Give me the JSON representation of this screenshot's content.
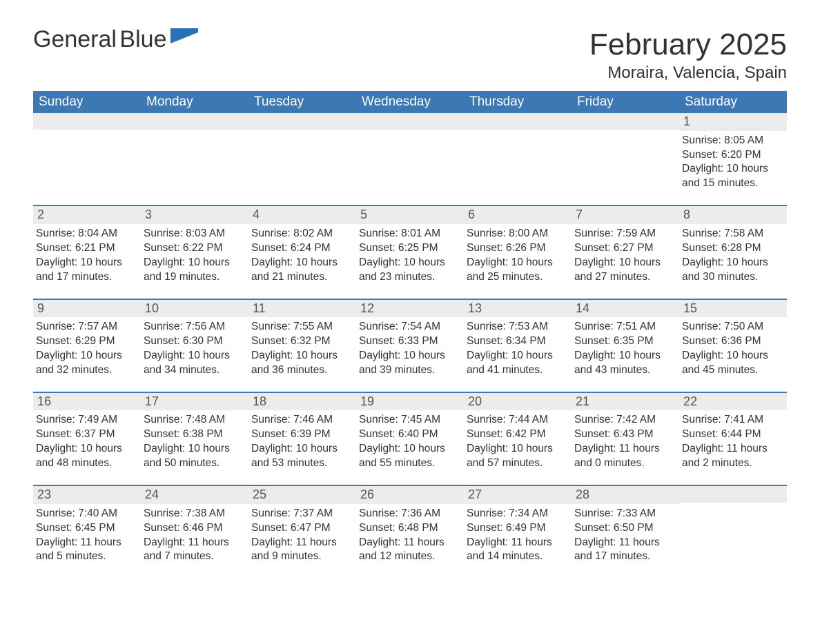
{
  "brand": {
    "name_line1": "General",
    "name_line2": "Blue",
    "flag_color": "#2a72b5",
    "text_color": "#333333"
  },
  "title": "February 2025",
  "location": "Moraira, Valencia, Spain",
  "colors": {
    "header_bg": "#3c79b4",
    "header_text": "#ffffff",
    "daynum_bg": "#ececec",
    "rule": "#3c79b4",
    "body_text": "#333333"
  },
  "typography": {
    "title_fontsize": 44,
    "location_fontsize": 24,
    "weekday_fontsize": 19,
    "daynum_fontsize": 18,
    "body_fontsize": 15.5
  },
  "weekdays": [
    "Sunday",
    "Monday",
    "Tuesday",
    "Wednesday",
    "Thursday",
    "Friday",
    "Saturday"
  ],
  "labels": {
    "sunrise": "Sunrise:",
    "sunset": "Sunset:",
    "daylight": "Daylight:"
  },
  "weeks": [
    [
      null,
      null,
      null,
      null,
      null,
      null,
      {
        "n": "1",
        "sunrise": "8:05 AM",
        "sunset": "6:20 PM",
        "daylight": "10 hours and 15 minutes."
      }
    ],
    [
      {
        "n": "2",
        "sunrise": "8:04 AM",
        "sunset": "6:21 PM",
        "daylight": "10 hours and 17 minutes."
      },
      {
        "n": "3",
        "sunrise": "8:03 AM",
        "sunset": "6:22 PM",
        "daylight": "10 hours and 19 minutes."
      },
      {
        "n": "4",
        "sunrise": "8:02 AM",
        "sunset": "6:24 PM",
        "daylight": "10 hours and 21 minutes."
      },
      {
        "n": "5",
        "sunrise": "8:01 AM",
        "sunset": "6:25 PM",
        "daylight": "10 hours and 23 minutes."
      },
      {
        "n": "6",
        "sunrise": "8:00 AM",
        "sunset": "6:26 PM",
        "daylight": "10 hours and 25 minutes."
      },
      {
        "n": "7",
        "sunrise": "7:59 AM",
        "sunset": "6:27 PM",
        "daylight": "10 hours and 27 minutes."
      },
      {
        "n": "8",
        "sunrise": "7:58 AM",
        "sunset": "6:28 PM",
        "daylight": "10 hours and 30 minutes."
      }
    ],
    [
      {
        "n": "9",
        "sunrise": "7:57 AM",
        "sunset": "6:29 PM",
        "daylight": "10 hours and 32 minutes."
      },
      {
        "n": "10",
        "sunrise": "7:56 AM",
        "sunset": "6:30 PM",
        "daylight": "10 hours and 34 minutes."
      },
      {
        "n": "11",
        "sunrise": "7:55 AM",
        "sunset": "6:32 PM",
        "daylight": "10 hours and 36 minutes."
      },
      {
        "n": "12",
        "sunrise": "7:54 AM",
        "sunset": "6:33 PM",
        "daylight": "10 hours and 39 minutes."
      },
      {
        "n": "13",
        "sunrise": "7:53 AM",
        "sunset": "6:34 PM",
        "daylight": "10 hours and 41 minutes."
      },
      {
        "n": "14",
        "sunrise": "7:51 AM",
        "sunset": "6:35 PM",
        "daylight": "10 hours and 43 minutes."
      },
      {
        "n": "15",
        "sunrise": "7:50 AM",
        "sunset": "6:36 PM",
        "daylight": "10 hours and 45 minutes."
      }
    ],
    [
      {
        "n": "16",
        "sunrise": "7:49 AM",
        "sunset": "6:37 PM",
        "daylight": "10 hours and 48 minutes."
      },
      {
        "n": "17",
        "sunrise": "7:48 AM",
        "sunset": "6:38 PM",
        "daylight": "10 hours and 50 minutes."
      },
      {
        "n": "18",
        "sunrise": "7:46 AM",
        "sunset": "6:39 PM",
        "daylight": "10 hours and 53 minutes."
      },
      {
        "n": "19",
        "sunrise": "7:45 AM",
        "sunset": "6:40 PM",
        "daylight": "10 hours and 55 minutes."
      },
      {
        "n": "20",
        "sunrise": "7:44 AM",
        "sunset": "6:42 PM",
        "daylight": "10 hours and 57 minutes."
      },
      {
        "n": "21",
        "sunrise": "7:42 AM",
        "sunset": "6:43 PM",
        "daylight": "11 hours and 0 minutes."
      },
      {
        "n": "22",
        "sunrise": "7:41 AM",
        "sunset": "6:44 PM",
        "daylight": "11 hours and 2 minutes."
      }
    ],
    [
      {
        "n": "23",
        "sunrise": "7:40 AM",
        "sunset": "6:45 PM",
        "daylight": "11 hours and 5 minutes."
      },
      {
        "n": "24",
        "sunrise": "7:38 AM",
        "sunset": "6:46 PM",
        "daylight": "11 hours and 7 minutes."
      },
      {
        "n": "25",
        "sunrise": "7:37 AM",
        "sunset": "6:47 PM",
        "daylight": "11 hours and 9 minutes."
      },
      {
        "n": "26",
        "sunrise": "7:36 AM",
        "sunset": "6:48 PM",
        "daylight": "11 hours and 12 minutes."
      },
      {
        "n": "27",
        "sunrise": "7:34 AM",
        "sunset": "6:49 PM",
        "daylight": "11 hours and 14 minutes."
      },
      {
        "n": "28",
        "sunrise": "7:33 AM",
        "sunset": "6:50 PM",
        "daylight": "11 hours and 17 minutes."
      },
      null
    ]
  ]
}
